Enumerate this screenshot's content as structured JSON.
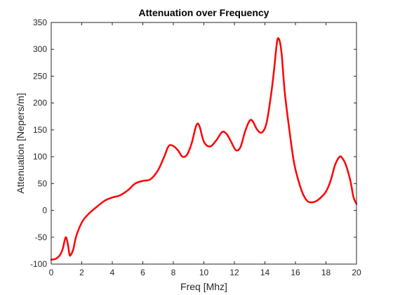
{
  "chart_data": {
    "type": "line",
    "title": "Attenuation over Frequency",
    "xlabel": "Freq [Mhz]",
    "ylabel": "Attenuation [Nepers/m]",
    "xlim": [
      0,
      20
    ],
    "ylim": [
      -100,
      350
    ],
    "xticks": [
      0,
      2,
      4,
      6,
      8,
      10,
      12,
      14,
      16,
      18,
      20
    ],
    "yticks": [
      -100,
      -50,
      0,
      50,
      100,
      150,
      200,
      250,
      300,
      350
    ],
    "grid": false,
    "box": true,
    "series": [
      {
        "color": "#ff0000",
        "x": [
          0,
          0.3,
          0.55,
          0.75,
          0.95,
          1.1,
          1.2,
          1.3,
          1.45,
          1.6,
          1.8,
          2.1,
          2.5,
          3.0,
          3.5,
          4.0,
          4.5,
          5.0,
          5.5,
          6.0,
          6.5,
          7.0,
          7.4,
          7.7,
          8.0,
          8.3,
          8.6,
          8.9,
          9.2,
          9.5,
          9.7,
          10.0,
          10.4,
          10.8,
          11.2,
          11.5,
          11.8,
          12.1,
          12.4,
          12.7,
          13.0,
          13.2,
          13.5,
          13.8,
          14.1,
          14.4,
          14.6,
          14.8,
          14.95,
          15.1,
          15.3,
          15.6,
          15.9,
          16.2,
          16.5,
          16.8,
          17.1,
          17.4,
          17.7,
          18.0,
          18.3,
          18.6,
          18.9,
          19.1,
          19.3,
          19.6,
          19.8,
          20.0
        ],
        "y": [
          -92,
          -90,
          -84,
          -72,
          -50,
          -65,
          -83,
          -82,
          -72,
          -52,
          -35,
          -18,
          -5,
          7,
          18,
          24,
          28,
          37,
          50,
          55,
          58,
          75,
          100,
          120,
          120,
          112,
          100,
          104,
          125,
          158,
          158,
          128,
          119,
          130,
          146,
          142,
          127,
          112,
          118,
          147,
          167,
          166,
          150,
          145,
          162,
          215,
          262,
          315,
          317,
          290,
          220,
          150,
          90,
          55,
          30,
          17,
          15,
          18,
          25,
          35,
          55,
          85,
          100,
          96,
          85,
          55,
          25,
          12
        ]
      }
    ]
  }
}
